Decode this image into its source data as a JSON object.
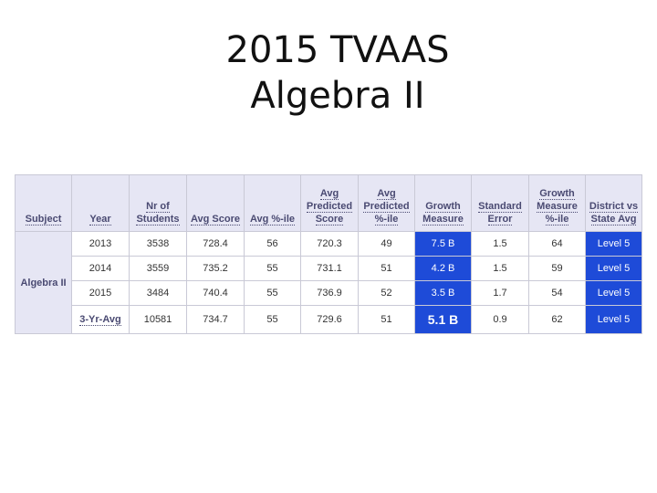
{
  "slide": {
    "title_line1": "2015 TVAAS",
    "title_line2": "Algebra II"
  },
  "table": {
    "headers": {
      "subject": "Subject",
      "year": "Year",
      "students": "Nr of Students",
      "avg_score": "Avg Score",
      "avg_pct": "Avg %-ile",
      "pred_score": "Avg Predicted Score",
      "pred_pct": "Avg Predicted %-ile",
      "growth": "Growth Measure",
      "std_err": "Standard Error",
      "growth_pct": "Growth Measure %-ile",
      "district": "District vs State Avg"
    },
    "subject": "Algebra II",
    "rows": [
      {
        "year": "2013",
        "students": "3538",
        "avg_score": "728.4",
        "avg_pct": "56",
        "pred_score": "720.3",
        "pred_pct": "49",
        "growth": "7.5 B",
        "std_err": "1.5",
        "growth_pct": "64",
        "district": "Level 5"
      },
      {
        "year": "2014",
        "students": "3559",
        "avg_score": "735.2",
        "avg_pct": "55",
        "pred_score": "731.1",
        "pred_pct": "51",
        "growth": "4.2 B",
        "std_err": "1.5",
        "growth_pct": "59",
        "district": "Level 5"
      },
      {
        "year": "2015",
        "students": "3484",
        "avg_score": "740.4",
        "avg_pct": "55",
        "pred_score": "736.9",
        "pred_pct": "52",
        "growth": "3.5 B",
        "std_err": "1.7",
        "growth_pct": "54",
        "district": "Level 5"
      },
      {
        "year": "3-Yr-Avg",
        "students": "10581",
        "avg_score": "734.7",
        "avg_pct": "55",
        "pred_score": "729.6",
        "pred_pct": "51",
        "growth": "5.1 B",
        "std_err": "0.9",
        "growth_pct": "62",
        "district": "Level 5"
      }
    ]
  },
  "colors": {
    "header_bg": "#e6e6f4",
    "header_text": "#4a4a72",
    "highlight_blue": "#1e4bd8"
  }
}
